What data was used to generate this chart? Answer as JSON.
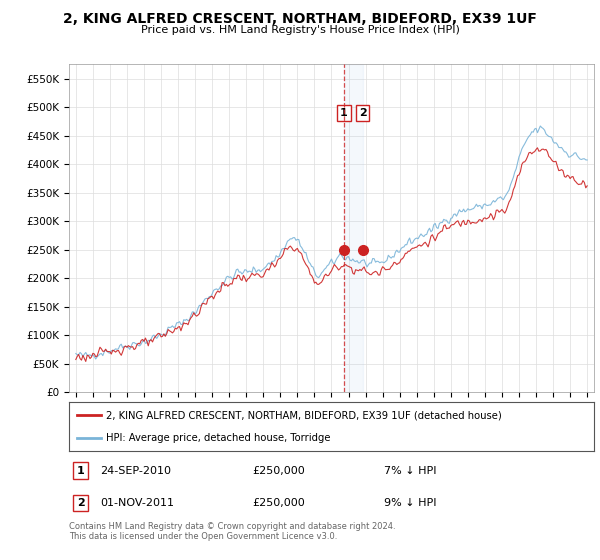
{
  "title": "2, KING ALFRED CRESCENT, NORTHAM, BIDEFORD, EX39 1UF",
  "subtitle": "Price paid vs. HM Land Registry's House Price Index (HPI)",
  "ylabel_ticks": [
    "£0",
    "£50K",
    "£100K",
    "£150K",
    "£200K",
    "£250K",
    "£300K",
    "£350K",
    "£400K",
    "£450K",
    "£500K",
    "£550K"
  ],
  "ytick_values": [
    0,
    50000,
    100000,
    150000,
    200000,
    250000,
    300000,
    350000,
    400000,
    450000,
    500000,
    550000
  ],
  "ylim": [
    0,
    575000
  ],
  "hpi_color": "#7ab4d8",
  "price_color": "#cc2222",
  "background_color": "#ffffff",
  "grid_color": "#dddddd",
  "legend_entries": [
    "2, KING ALFRED CRESCENT, NORTHAM, BIDEFORD, EX39 1UF (detached house)",
    "HPI: Average price, detached house, Torridge"
  ],
  "sale1_year": 2010.73,
  "sale1_price": 250000,
  "sale1_label": "1",
  "sale2_year": 2011.83,
  "sale2_price": 250000,
  "sale2_label": "2",
  "footnote": "Contains HM Land Registry data © Crown copyright and database right 2024.\nThis data is licensed under the Open Government Licence v3.0."
}
